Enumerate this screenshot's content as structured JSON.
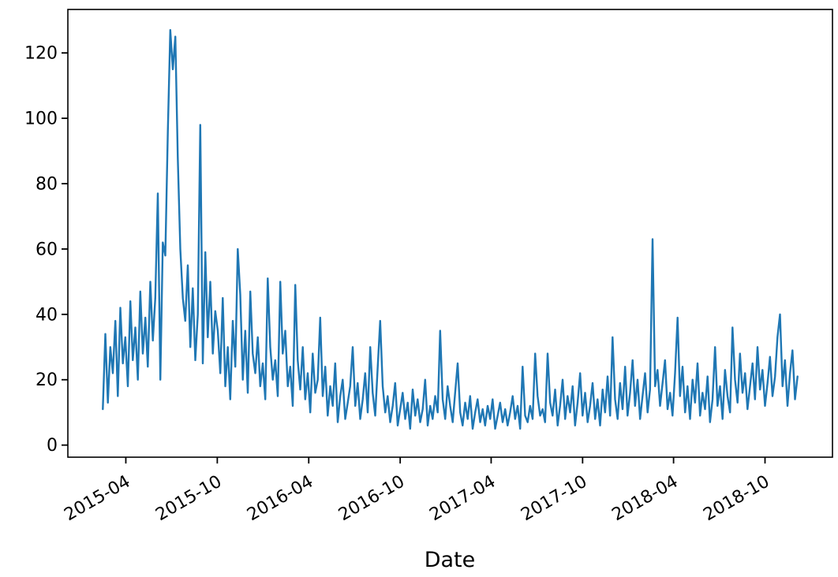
{
  "chart_data": {
    "type": "line",
    "title": "",
    "xlabel": "Date",
    "legend": "none",
    "grid": false,
    "line_color": "#1f77b4",
    "text_color": "#000000",
    "background_color": "#ffffff",
    "x_start_date": "2015-02-14",
    "x_step_days": 5,
    "x_margin_days": 70,
    "ylim": [
      -3.7,
      133.3
    ],
    "y_ticks": [
      0,
      20,
      40,
      60,
      80,
      100,
      120
    ],
    "x_ticks": [
      {
        "date": "2015-04-01",
        "label": "2015-04"
      },
      {
        "date": "2015-10-01",
        "label": "2015-10"
      },
      {
        "date": "2016-04-01",
        "label": "2016-04"
      },
      {
        "date": "2016-10-01",
        "label": "2016-10"
      },
      {
        "date": "2017-04-01",
        "label": "2017-04"
      },
      {
        "date": "2017-10-01",
        "label": "2017-10"
      },
      {
        "date": "2018-04-01",
        "label": "2018-04"
      },
      {
        "date": "2018-10-01",
        "label": "2018-10"
      }
    ],
    "values": [
      11,
      34,
      13,
      30,
      22,
      38,
      15,
      42,
      25,
      33,
      18,
      44,
      26,
      36,
      20,
      47,
      28,
      39,
      24,
      50,
      32,
      45,
      77,
      20,
      62,
      58,
      96,
      127,
      115,
      125,
      88,
      60,
      45,
      38,
      55,
      30,
      48,
      26,
      40,
      98,
      25,
      59,
      33,
      50,
      28,
      41,
      35,
      22,
      45,
      18,
      30,
      14,
      38,
      24,
      60,
      46,
      20,
      35,
      16,
      47,
      28,
      22,
      33,
      18,
      25,
      14,
      51,
      30,
      20,
      26,
      15,
      50,
      28,
      35,
      18,
      24,
      12,
      49,
      26,
      17,
      30,
      14,
      22,
      10,
      28,
      16,
      20,
      39,
      15,
      24,
      9,
      18,
      12,
      25,
      7,
      15,
      20,
      8,
      13,
      18,
      30,
      12,
      19,
      8,
      14,
      22,
      10,
      30,
      16,
      9,
      24,
      38,
      18,
      10,
      15,
      7,
      12,
      19,
      6,
      11,
      16,
      8,
      13,
      5,
      17,
      9,
      14,
      7,
      11,
      20,
      6,
      12,
      8,
      15,
      10,
      35,
      14,
      8,
      18,
      12,
      7,
      16,
      25,
      10,
      6,
      13,
      8,
      15,
      5,
      10,
      14,
      7,
      11,
      6,
      12,
      8,
      14,
      5,
      9,
      13,
      7,
      11,
      6,
      10,
      15,
      8,
      12,
      5,
      24,
      9,
      7,
      12,
      8,
      28,
      15,
      9,
      11,
      7,
      28,
      13,
      9,
      17,
      6,
      12,
      20,
      8,
      15,
      10,
      18,
      6,
      13,
      22,
      9,
      16,
      7,
      12,
      19,
      8,
      14,
      6,
      17,
      10,
      21,
      9,
      33,
      14,
      8,
      19,
      11,
      24,
      9,
      16,
      26,
      12,
      20,
      8,
      15,
      22,
      10,
      17,
      63,
      18,
      23,
      12,
      19,
      26,
      11,
      16,
      9,
      22,
      39,
      15,
      24,
      10,
      18,
      8,
      20,
      13,
      25,
      9,
      16,
      11,
      21,
      7,
      14,
      30,
      12,
      18,
      8,
      23,
      15,
      10,
      36,
      20,
      13,
      28,
      16,
      22,
      11,
      18,
      25,
      14,
      30,
      17,
      23,
      12,
      19,
      27,
      15,
      21,
      33,
      40,
      18,
      26,
      12,
      22,
      29,
      14,
      21
    ]
  }
}
